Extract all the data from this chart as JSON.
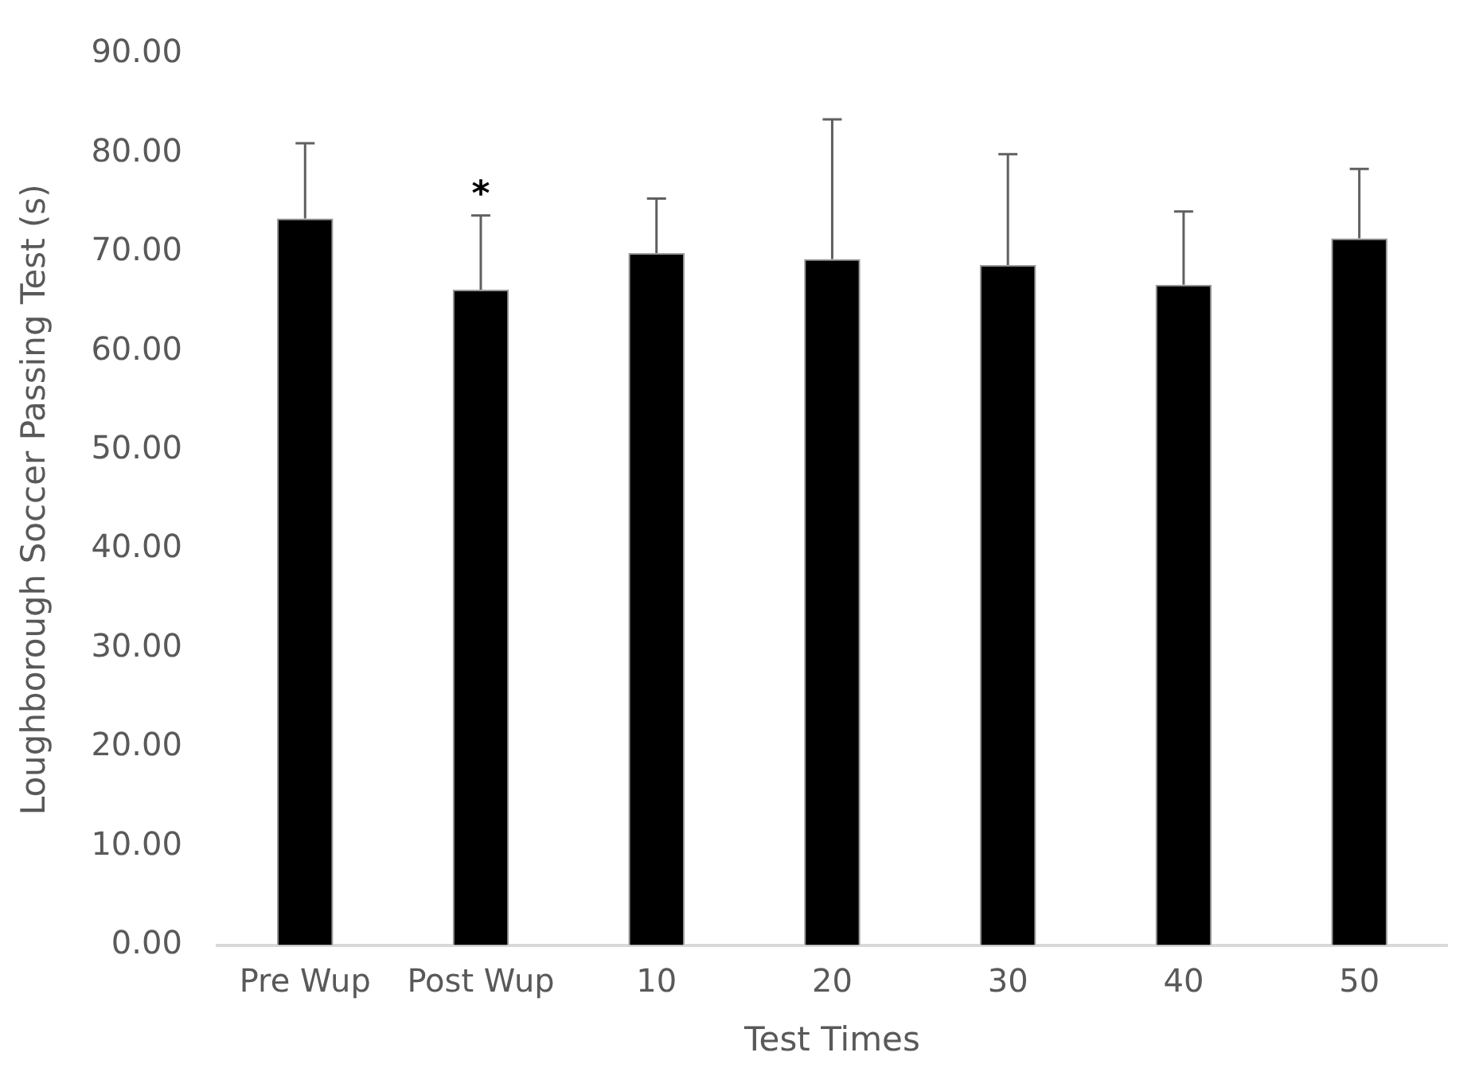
{
  "chart_data": {
    "type": "bar",
    "xlabel": "Test Times",
    "ylabel": "Loughborough Soccer Passing Test (s)",
    "categories": [
      "Pre Wup",
      "Post Wup",
      "10",
      "20",
      "30",
      "40",
      "50"
    ],
    "values": [
      73.4,
      66.2,
      69.9,
      69.3,
      68.7,
      66.7,
      71.4
    ],
    "errors": [
      [
        73.4,
        81.0
      ],
      [
        66.2,
        73.7
      ],
      [
        69.9,
        75.4
      ],
      [
        69.3,
        83.4
      ],
      [
        68.7,
        79.9
      ],
      [
        66.7,
        74.1
      ],
      [
        71.4,
        78.4
      ]
    ],
    "color": "#000000",
    "ylim": [
      0,
      90
    ],
    "yticks": [
      {
        "value": 0,
        "label": "0.00"
      },
      {
        "value": 10,
        "label": "10.00"
      },
      {
        "value": 20,
        "label": "20.00"
      },
      {
        "value": 30,
        "label": "30.00"
      },
      {
        "value": 40,
        "label": "40.00"
      },
      {
        "value": 50,
        "label": "50.00"
      },
      {
        "value": 60,
        "label": "60.00"
      },
      {
        "value": 70,
        "label": "70.00"
      },
      {
        "value": 80,
        "label": "80.00"
      },
      {
        "value": 90,
        "label": "90.00"
      }
    ],
    "annotations": [
      {
        "text": "*",
        "x": "Post Wup",
        "y": 66.2
      }
    ],
    "grid": false,
    "legend": false
  }
}
